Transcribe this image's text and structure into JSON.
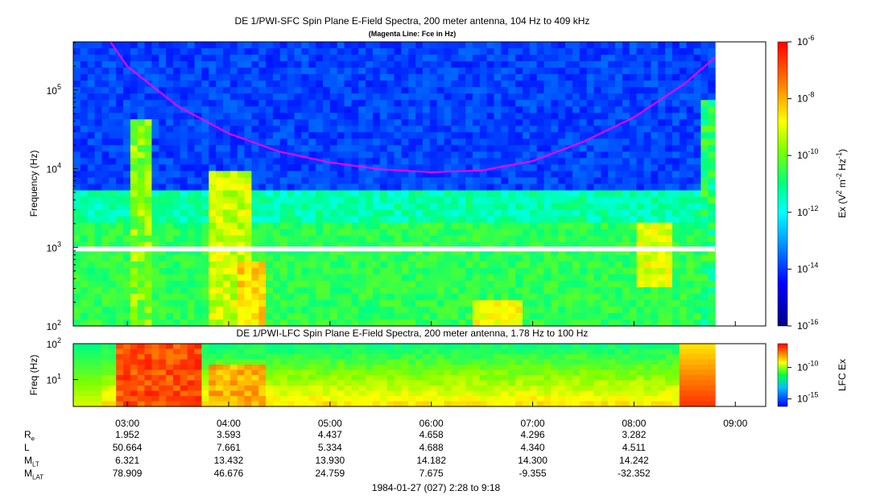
{
  "chart_data": [
    {
      "type": "heatmap",
      "title": "DE 1/PWI-SFC  Spin Plane E-Field Spectra, 200 meter antenna, 104 Hz to 409 kHz",
      "subtitle": "(Magenta Line: Fce in Hz)",
      "ylabel": "Frequency (Hz)",
      "yscale": "log",
      "ylim": [
        100,
        409000
      ],
      "yticks": [
        {
          "value": 100,
          "base": "10",
          "exp": "2"
        },
        {
          "value": 1000,
          "base": "10",
          "exp": "3"
        },
        {
          "value": 10000,
          "base": "10",
          "exp": "4"
        },
        {
          "value": 100000,
          "base": "10",
          "exp": "5"
        }
      ],
      "colorbar": {
        "label": "Ex (V2 m-2 Hz-1)",
        "label_parts": [
          "Ex (V",
          "2",
          " m",
          "-2",
          " Hz",
          "-1",
          ")"
        ],
        "scale": "log",
        "range": [
          1e-16,
          1e-06
        ],
        "ticks": [
          {
            "value": 1e-06,
            "base": "10",
            "exp": "-6"
          },
          {
            "value": 1e-08,
            "base": "10",
            "exp": "-8"
          },
          {
            "value": 1e-10,
            "base": "10",
            "exp": "-10"
          },
          {
            "value": 1e-12,
            "base": "10",
            "exp": "-12"
          },
          {
            "value": 1e-14,
            "base": "10",
            "exp": "-14"
          },
          {
            "value": 1e-16,
            "base": "10",
            "exp": "-16"
          }
        ]
      },
      "series": [
        {
          "name": "Fce in Hz",
          "color": "#ff00ff",
          "points": [
            {
              "t": "02:50",
              "f": 409000
            },
            {
              "t": "03:00",
              "f": 200000
            },
            {
              "t": "03:30",
              "f": 62000
            },
            {
              "t": "04:00",
              "f": 28000
            },
            {
              "t": "04:30",
              "f": 16500
            },
            {
              "t": "05:00",
              "f": 12000
            },
            {
              "t": "05:30",
              "f": 9800
            },
            {
              "t": "06:00",
              "f": 9000
            },
            {
              "t": "06:30",
              "f": 9500
            },
            {
              "t": "07:00",
              "f": 12500
            },
            {
              "t": "07:30",
              "f": 22000
            },
            {
              "t": "08:00",
              "f": 45000
            },
            {
              "t": "08:30",
              "f": 120000
            },
            {
              "t": "08:48",
              "f": 260000
            }
          ]
        }
      ],
      "data_gap": {
        "frequency_hz": 950
      }
    },
    {
      "type": "heatmap",
      "title": "DE 1/PWI-LFC  Spin Plane E-Field Spectra, 200 meter antenna, 1.78 Hz to 100 Hz",
      "ylabel": "Freq (Hz)",
      "yscale": "log",
      "ylim": [
        1.78,
        100
      ],
      "yticks": [
        {
          "value": 10,
          "base": "10",
          "exp": "1"
        },
        {
          "value": 100,
          "base": "10",
          "exp": "2"
        }
      ],
      "colorbar": {
        "label": "LFC Ex",
        "scale": "log",
        "ticks": [
          {
            "value": 1e-10,
            "base": "10",
            "exp": "-10"
          },
          {
            "value": 1e-15,
            "base": "10",
            "exp": "-15"
          }
        ]
      }
    }
  ],
  "xaxis": {
    "range": [
      "02:28",
      "09:18"
    ],
    "ticks": [
      "03:00",
      "04:00",
      "05:00",
      "06:00",
      "07:00",
      "08:00",
      "09:00"
    ],
    "caption": "1984-01-27 (027) 2:28 to 9:18"
  },
  "ephemeris": {
    "rows": [
      {
        "label": "R",
        "sub": "e",
        "values": [
          "1.952",
          "3.593",
          "4.437",
          "4.658",
          "4.296",
          "3.282"
        ]
      },
      {
        "label": "L",
        "sub": "",
        "values": [
          "50.664",
          "7.661",
          "5.334",
          "4.688",
          "4.340",
          "4.511"
        ]
      },
      {
        "label": "M",
        "sub": "LT",
        "values": [
          "6.321",
          "13.432",
          "13.930",
          "14.182",
          "14.300",
          "14.242"
        ]
      },
      {
        "label": "M",
        "sub": "LAT",
        "values": [
          "78.909",
          "46.676",
          "24.759",
          "7.675",
          "-9.355",
          "-32.352"
        ]
      }
    ]
  },
  "colors": {
    "gap": "#ffffff",
    "fce_line": "#ff00ff"
  }
}
